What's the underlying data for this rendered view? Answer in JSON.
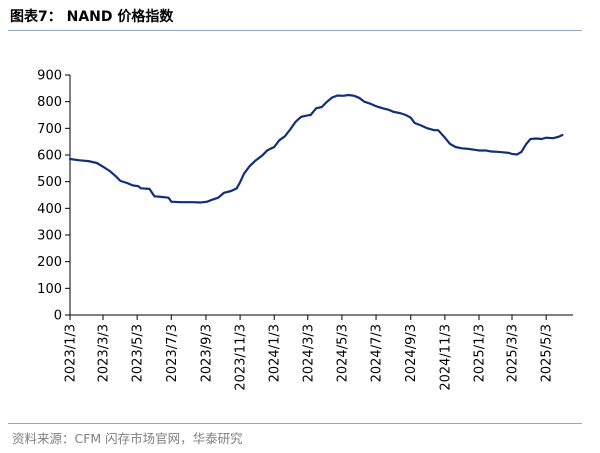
{
  "header": {
    "title": "图表7：  NAND 价格指数"
  },
  "footer": {
    "source": "资料来源：CFM 闪存市场官网，华泰研究"
  },
  "chart_data": {
    "type": "line",
    "title": "NAND 价格指数",
    "xlabel": "",
    "ylabel": "",
    "ylim": [
      0,
      900
    ],
    "yticks": [
      0,
      100,
      200,
      300,
      400,
      500,
      600,
      700,
      800,
      900
    ],
    "xlim": [
      "2023-01-03",
      "2025-06-20"
    ],
    "xticks": [
      "2023/1/3",
      "2023/3/3",
      "2023/5/3",
      "2023/7/3",
      "2023/9/3",
      "2023/11/3",
      "2024/1/3",
      "2024/3/3",
      "2024/5/3",
      "2024/7/3",
      "2024/9/3",
      "2024/11/3",
      "2025/1/3",
      "2025/3/3",
      "2025/5/3"
    ],
    "grid": false,
    "legend": "none",
    "line_color": "#0f2f7a",
    "series": [
      {
        "points": [
          [
            "2023-01-03",
            585
          ],
          [
            "2023-01-20",
            580
          ],
          [
            "2023-02-05",
            577
          ],
          [
            "2023-02-20",
            570
          ],
          [
            "2023-03-03",
            556
          ],
          [
            "2023-03-15",
            540
          ],
          [
            "2023-03-25",
            522
          ],
          [
            "2023-04-03",
            503
          ],
          [
            "2023-04-15",
            495
          ],
          [
            "2023-04-25",
            486
          ],
          [
            "2023-05-05",
            483
          ],
          [
            "2023-05-10",
            475
          ],
          [
            "2023-05-25",
            473
          ],
          [
            "2023-06-03",
            445
          ],
          [
            "2023-06-15",
            443
          ],
          [
            "2023-06-28",
            440
          ],
          [
            "2023-07-03",
            425
          ],
          [
            "2023-07-20",
            423
          ],
          [
            "2023-08-10",
            423
          ],
          [
            "2023-08-25",
            422
          ],
          [
            "2023-09-05",
            425
          ],
          [
            "2023-09-15",
            433
          ],
          [
            "2023-09-25",
            440
          ],
          [
            "2023-10-05",
            458
          ],
          [
            "2023-10-18",
            465
          ],
          [
            "2023-10-28",
            475
          ],
          [
            "2023-11-03",
            498
          ],
          [
            "2023-11-10",
            530
          ],
          [
            "2023-11-20",
            558
          ],
          [
            "2023-12-01",
            580
          ],
          [
            "2023-12-12",
            597
          ],
          [
            "2023-12-22",
            618
          ],
          [
            "2024-01-03",
            630
          ],
          [
            "2024-01-12",
            655
          ],
          [
            "2024-01-22",
            670
          ],
          [
            "2024-02-01",
            697
          ],
          [
            "2024-02-10",
            724
          ],
          [
            "2024-02-20",
            743
          ],
          [
            "2024-03-01",
            748
          ],
          [
            "2024-03-08",
            750
          ],
          [
            "2024-03-18",
            775
          ],
          [
            "2024-03-28",
            780
          ],
          [
            "2024-04-05",
            797
          ],
          [
            "2024-04-15",
            815
          ],
          [
            "2024-04-25",
            823
          ],
          [
            "2024-05-05",
            822
          ],
          [
            "2024-05-15",
            825
          ],
          [
            "2024-05-25",
            822
          ],
          [
            "2024-06-03",
            814
          ],
          [
            "2024-06-12",
            800
          ],
          [
            "2024-06-22",
            793
          ],
          [
            "2024-07-03",
            783
          ],
          [
            "2024-07-15",
            775
          ],
          [
            "2024-07-25",
            770
          ],
          [
            "2024-08-03",
            762
          ],
          [
            "2024-08-15",
            757
          ],
          [
            "2024-08-25",
            750
          ],
          [
            "2024-09-03",
            740
          ],
          [
            "2024-09-10",
            720
          ],
          [
            "2024-09-20",
            712
          ],
          [
            "2024-10-03",
            700
          ],
          [
            "2024-10-15",
            693
          ],
          [
            "2024-10-22",
            693
          ],
          [
            "2024-11-03",
            665
          ],
          [
            "2024-11-12",
            642
          ],
          [
            "2024-11-22",
            630
          ],
          [
            "2024-12-03",
            625
          ],
          [
            "2024-12-15",
            623
          ],
          [
            "2024-12-25",
            620
          ],
          [
            "2025-01-03",
            617
          ],
          [
            "2025-01-15",
            617
          ],
          [
            "2025-01-25",
            613
          ],
          [
            "2025-02-05",
            612
          ],
          [
            "2025-02-15",
            610
          ],
          [
            "2025-02-25",
            608
          ],
          [
            "2025-03-03",
            604
          ],
          [
            "2025-03-12",
            602
          ],
          [
            "2025-03-20",
            612
          ],
          [
            "2025-03-28",
            640
          ],
          [
            "2025-04-05",
            660
          ],
          [
            "2025-04-15",
            662
          ],
          [
            "2025-04-25",
            660
          ],
          [
            "2025-05-03",
            665
          ],
          [
            "2025-05-15",
            663
          ],
          [
            "2025-05-25",
            668
          ],
          [
            "2025-06-01",
            675
          ]
        ]
      }
    ]
  }
}
